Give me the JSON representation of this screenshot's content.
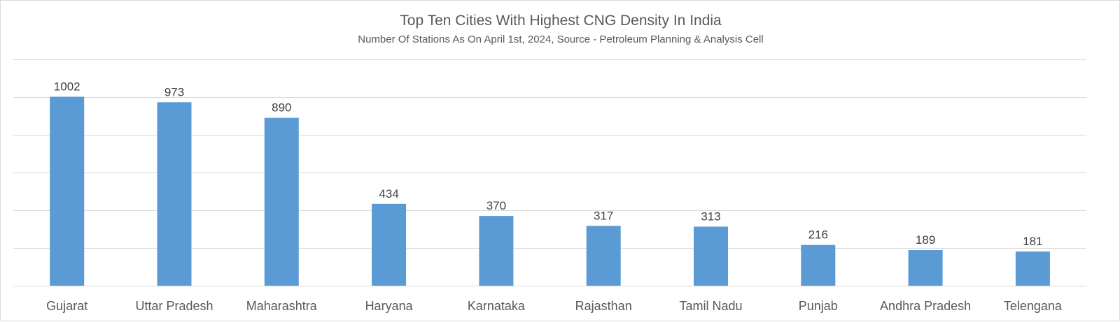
{
  "chart_data": {
    "type": "bar",
    "title": "Top Ten Cities With Highest CNG Density In India",
    "subtitle": "Number Of Stations As On April 1st, 2024, Source - Petroleum Planning & Analysis Cell",
    "categories": [
      "Gujarat",
      "Uttar Pradesh",
      "Maharashtra",
      "Haryana",
      "Karnataka",
      "Rajasthan",
      "Tamil Nadu",
      "Punjab",
      "Andhra Pradesh",
      "Telengana"
    ],
    "values": [
      1002,
      973,
      890,
      434,
      370,
      317,
      313,
      216,
      189,
      181
    ],
    "xlabel": "",
    "ylabel": "",
    "ylim": [
      0,
      1200
    ],
    "gridlines": [
      0,
      200,
      400,
      600,
      800,
      1000,
      1200
    ],
    "grid": true,
    "legend": "none",
    "bar_color": "#5b9bd5"
  }
}
